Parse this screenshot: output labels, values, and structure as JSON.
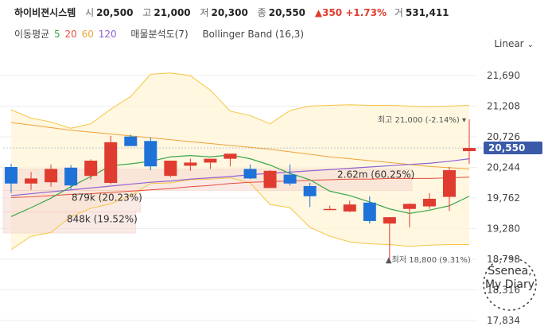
{
  "header": {
    "stock_name": "하이비젼시스템",
    "open_label": "시",
    "open": "20,500",
    "high_label": "고",
    "high": "21,000",
    "low_label": "저",
    "low": "20,300",
    "close_label": "종",
    "close": "20,550",
    "change": "▲350 +1.73%",
    "volume_label": "거",
    "volume": "531,411"
  },
  "indicators": {
    "ma_label": "이동평균",
    "ma5": "5",
    "ma20": "20",
    "ma60": "60",
    "ma120": "120",
    "profile": "매물분석도(7)",
    "bollinger": "Bollinger Band (16,3)"
  },
  "scale_mode": "Linear",
  "colors": {
    "up": "#e03b2f",
    "down": "#1f73d8",
    "ma5": "#3aa64a",
    "ma20": "#e74c3c",
    "ma60": "#f0a23b",
    "ma120": "#8e62d4",
    "band": "#f5c542",
    "price_tag": "#3a5aa8"
  },
  "chart_data": {
    "type": "candlestick",
    "y_ticks": [
      "21,690",
      "21,208",
      "20,726",
      "20,244",
      "19,762",
      "19,280",
      "18,798",
      "18,316",
      "17,834"
    ],
    "y_tick_values": [
      21690,
      21208,
      20726,
      20244,
      19762,
      19280,
      18798,
      18316,
      17834
    ],
    "ylim": [
      17834,
      21690
    ],
    "current_price_tag": "20,550",
    "high_annotation": "최고 21,000 (-2.14%)",
    "low_annotation": "최저 18,800 (9.31%)",
    "candles": [
      {
        "o": 20250,
        "h": 20300,
        "l": 19840,
        "c": 19990
      },
      {
        "o": 19990,
        "h": 20170,
        "l": 19890,
        "c": 20070
      },
      {
        "o": 20010,
        "h": 20290,
        "l": 19940,
        "c": 20220
      },
      {
        "o": 20240,
        "h": 20280,
        "l": 19900,
        "c": 19960
      },
      {
        "o": 20110,
        "h": 20370,
        "l": 20050,
        "c": 20350
      },
      {
        "o": 20000,
        "h": 20740,
        "l": 19980,
        "c": 20640
      },
      {
        "o": 20730,
        "h": 20760,
        "l": 20580,
        "c": 20580
      },
      {
        "o": 20660,
        "h": 20720,
        "l": 20200,
        "c": 20260
      },
      {
        "o": 20110,
        "h": 20350,
        "l": 20090,
        "c": 20350
      },
      {
        "o": 20270,
        "h": 20380,
        "l": 20190,
        "c": 20320
      },
      {
        "o": 20320,
        "h": 20380,
        "l": 20220,
        "c": 20380
      },
      {
        "o": 20380,
        "h": 20450,
        "l": 20260,
        "c": 20460
      },
      {
        "o": 20220,
        "h": 20290,
        "l": 20060,
        "c": 20070
      },
      {
        "o": 19920,
        "h": 20200,
        "l": 19920,
        "c": 20190
      },
      {
        "o": 20130,
        "h": 20290,
        "l": 19960,
        "c": 19990
      },
      {
        "o": 19950,
        "h": 20000,
        "l": 19620,
        "c": 19790
      },
      {
        "o": 19590,
        "h": 19640,
        "l": 19590,
        "c": 19590
      },
      {
        "o": 19550,
        "h": 19720,
        "l": 19540,
        "c": 19660
      },
      {
        "o": 19690,
        "h": 19790,
        "l": 19360,
        "c": 19400
      },
      {
        "o": 19360,
        "h": 19460,
        "l": 18800,
        "c": 19460
      },
      {
        "o": 19590,
        "h": 19680,
        "l": 19300,
        "c": 19670
      },
      {
        "o": 19630,
        "h": 19840,
        "l": 19590,
        "c": 19750
      },
      {
        "o": 19780,
        "h": 20250,
        "l": 19560,
        "c": 20200
      },
      {
        "o": 20500,
        "h": 21000,
        "l": 20300,
        "c": 20550
      }
    ],
    "bollinger_upper": [
      21150,
      21020,
      20960,
      20860,
      20930,
      21160,
      21360,
      21710,
      21730,
      21690,
      21460,
      21130,
      21060,
      20930,
      21140,
      21210,
      21220,
      21230,
      21220,
      21220,
      21210,
      21200,
      21210,
      21220
    ],
    "bollinger_lower": [
      18950,
      19160,
      19220,
      19470,
      19600,
      19670,
      19800,
      19990,
      20000,
      20050,
      20060,
      20080,
      20000,
      19660,
      19610,
      19300,
      19160,
      19070,
      19040,
      19030,
      19000,
      19020,
      19030,
      19030
    ],
    "ma5": [
      19470,
      19610,
      19760,
      19940,
      20100,
      20270,
      20300,
      20340,
      20410,
      20430,
      20410,
      20440,
      20380,
      20280,
      20150,
      20050,
      19870,
      19800,
      19700,
      19590,
      19520,
      19570,
      19640,
      19790
    ],
    "ma20": [
      19770,
      19780,
      19800,
      19820,
      19830,
      19850,
      19870,
      19890,
      19910,
      19940,
      19960,
      19990,
      20010,
      20020,
      20030,
      20040,
      20050,
      20060,
      20060,
      20070,
      20070,
      20070,
      20080,
      20090
    ],
    "ma60": [
      20950,
      20910,
      20870,
      20830,
      20800,
      20770,
      20740,
      20710,
      20680,
      20650,
      20620,
      20590,
      20560,
      20530,
      20490,
      20450,
      20410,
      20380,
      20350,
      20320,
      20290,
      20260,
      20240,
      20220
    ],
    "ma120": [
      19800,
      19830,
      19860,
      19890,
      19920,
      19950,
      19980,
      20010,
      20030,
      20060,
      20080,
      20100,
      20130,
      20150,
      20170,
      20190,
      20210,
      20230,
      20250,
      20270,
      20290,
      20310,
      20340,
      20380
    ],
    "volume_profile": [
      {
        "price_from": 19880,
        "price_to": 20220,
        "label": "2.62m (60.25%)",
        "share": 60.25
      },
      {
        "price_from": 19540,
        "price_to": 19880,
        "label": "879k (20.23%)",
        "share": 20.23
      },
      {
        "price_from": 19210,
        "price_to": 19540,
        "label": "848k (19.52%)",
        "share": 19.52
      }
    ]
  },
  "watermark": {
    "line1": "Ssenea,",
    "line2": "My Diary"
  }
}
